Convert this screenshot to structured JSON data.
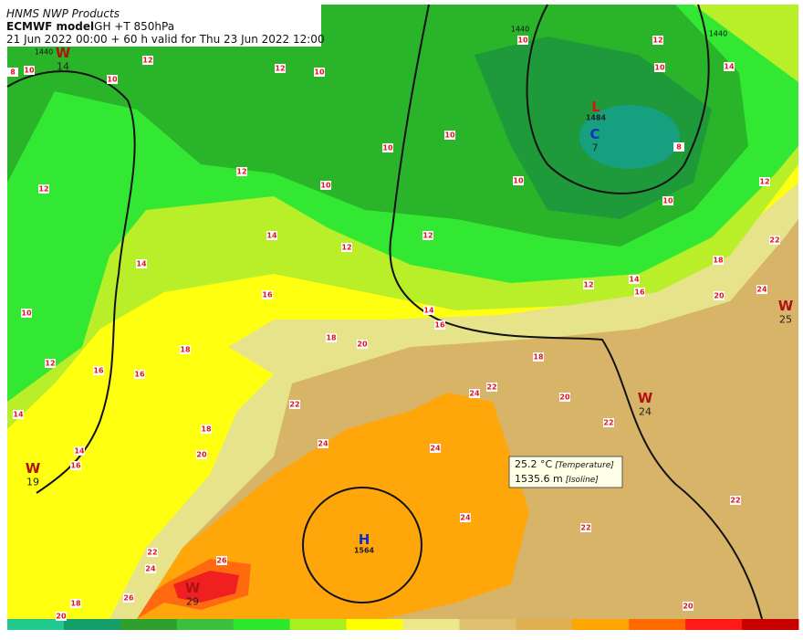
{
  "header": {
    "source": "HNMS NWP Products",
    "model": "ECMWF model",
    "product": "GH +T 850hPa",
    "valid": "21 Jun 2022 00:00 + 60 h valid for Thu 23 Jun 2022 12:00"
  },
  "tooltip": {
    "temperature": "25.2 °C",
    "temperature_label": "[Temperature]",
    "isoline": "1535.6 m",
    "isoline_label": "[Isoline]"
  },
  "centers": [
    {
      "letter": "W",
      "value": "14"
    },
    {
      "letter": "L",
      "value": "1484"
    },
    {
      "letter": "C",
      "value": "7"
    },
    {
      "letter": "W",
      "value": "25"
    },
    {
      "letter": "W",
      "value": "24"
    },
    {
      "letter": "W",
      "value": "19"
    },
    {
      "letter": "H",
      "value": "1564"
    },
    {
      "letter": "W",
      "value": "29"
    }
  ],
  "isoline_labels": [
    "1440",
    "1440",
    "1440"
  ],
  "contour_labels": [
    "10",
    "12",
    "14",
    "10",
    "12",
    "12",
    "10",
    "10",
    "8",
    "10",
    "10",
    "10",
    "8",
    "12",
    "10",
    "10",
    "12",
    "10",
    "12",
    "14",
    "12",
    "12",
    "14",
    "22",
    "18",
    "24",
    "20",
    "14",
    "16",
    "12",
    "16",
    "14",
    "16",
    "10",
    "18",
    "20",
    "18",
    "18",
    "12",
    "16",
    "16",
    "22",
    "24",
    "20",
    "22",
    "22",
    "14",
    "18",
    "24",
    "24",
    "14",
    "20",
    "16",
    "22",
    "24",
    "22",
    "22",
    "26",
    "24",
    "26",
    "18",
    "20",
    "20"
  ]
}
